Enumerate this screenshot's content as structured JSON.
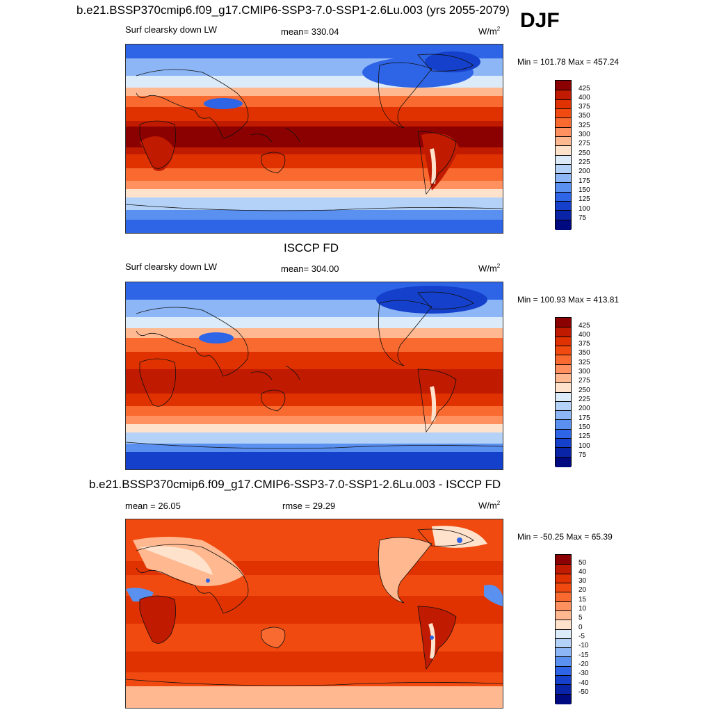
{
  "season": "DJF",
  "panels": [
    {
      "title": "b.e21.BSSP370cmip6.f09_g17.CMIP6-SSP3-7.0-SSP1-2.6Lu.003 (yrs 2055-2079)",
      "left_label": "Surf clearsky down LW",
      "center_label": "mean= 330.04",
      "units": "W/m",
      "units_sup": "2",
      "minmax": "Min = 101.78 Max = 457.24",
      "colorbar_labels": [
        "425",
        "400",
        "375",
        "350",
        "325",
        "300",
        "275",
        "250",
        "225",
        "200",
        "175",
        "150",
        "125",
        "100",
        "75"
      ],
      "colorbar_colors": [
        "#8b0000",
        "#c01a00",
        "#e03200",
        "#f04a10",
        "#f86a30",
        "#ff9060",
        "#ffb890",
        "#ffe2cc",
        "#dcebfa",
        "#b4d2f8",
        "#8cb6f5",
        "#5a90f0",
        "#2e64e6",
        "#1440cc",
        "#0a24a8",
        "#000a80"
      ]
    },
    {
      "title": "ISCCP FD",
      "left_label": "Surf clearsky down LW",
      "center_label": "mean= 304.00",
      "units": "W/m",
      "units_sup": "2",
      "minmax": "Min = 100.93 Max = 413.81",
      "colorbar_labels": [
        "425",
        "400",
        "375",
        "350",
        "325",
        "300",
        "275",
        "250",
        "225",
        "200",
        "175",
        "150",
        "125",
        "100",
        "75"
      ],
      "colorbar_colors": [
        "#8b0000",
        "#c01a00",
        "#e03200",
        "#f04a10",
        "#f86a30",
        "#ff9060",
        "#ffb890",
        "#ffe2cc",
        "#dcebfa",
        "#b4d2f8",
        "#8cb6f5",
        "#5a90f0",
        "#2e64e6",
        "#1440cc",
        "#0a24a8",
        "#000a80"
      ]
    },
    {
      "title": "b.e21.BSSP370cmip6.f09_g17.CMIP6-SSP3-7.0-SSP1-2.6Lu.003 - ISCCP FD",
      "left_label": "mean =  26.05",
      "center_label": "rmse =  29.29",
      "units": "W/m",
      "units_sup": "2",
      "minmax": "Min = -50.25 Max =  65.39",
      "colorbar_labels": [
        "50",
        "40",
        "30",
        "20",
        "15",
        "10",
        "5",
        "0",
        "-5",
        "-10",
        "-15",
        "-20",
        "-30",
        "-40",
        "-50"
      ],
      "colorbar_colors": [
        "#8b0000",
        "#c01a00",
        "#e03200",
        "#f04a10",
        "#f86a30",
        "#ff9060",
        "#ffb890",
        "#ffe2cc",
        "#dcebfa",
        "#b4d2f8",
        "#8cb6f5",
        "#5a90f0",
        "#2e64e6",
        "#1440cc",
        "#0a24a8",
        "#000a80"
      ]
    }
  ]
}
